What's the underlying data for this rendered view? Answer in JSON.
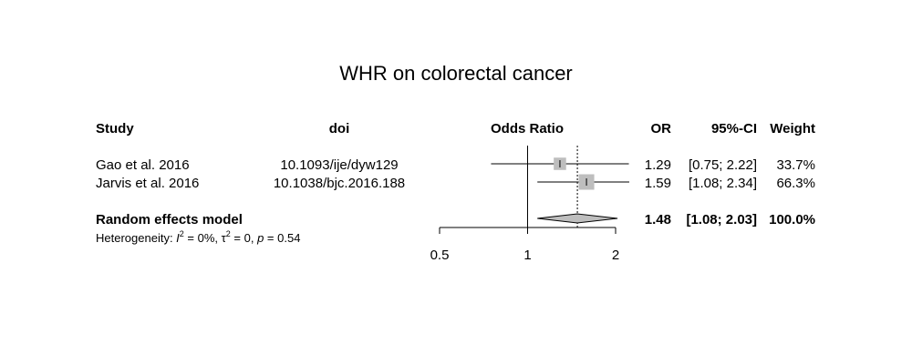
{
  "chart_data": {
    "type": "forest",
    "title": "WHR on colorectal cancer",
    "columns": {
      "study": "Study",
      "doi": "doi",
      "effect_label": "Odds Ratio",
      "or": "OR",
      "ci": "95%-CI",
      "weight": "Weight"
    },
    "studies": [
      {
        "study": "Gao et al. 2016",
        "doi": "10.1093/ije/dyw129",
        "or": 1.29,
        "lower": 0.75,
        "upper": 2.22,
        "weight": 33.7,
        "or_text": "1.29",
        "ci_text": "[0.75; 2.22]",
        "weight_text": "33.7%"
      },
      {
        "study": "Jarvis et al. 2016",
        "doi": "10.1038/bjc.2016.188",
        "or": 1.59,
        "lower": 1.08,
        "upper": 2.34,
        "weight": 66.3,
        "or_text": "1.59",
        "ci_text": "[1.08; 2.34]",
        "weight_text": "66.3%"
      }
    ],
    "pooled": {
      "label": "Random effects model",
      "or": 1.48,
      "lower": 1.08,
      "upper": 2.03,
      "or_text": "1.48",
      "ci_text": "[1.08; 2.03]",
      "weight_text": "100.0%"
    },
    "heterogeneity": {
      "prefix": "Heterogeneity: ",
      "i2_symbol": "I",
      "i2_value": " = 0%, ",
      "tau_symbol": "τ",
      "tau_value": " = 0, ",
      "p_symbol": "p",
      "p_value": " = 0.54"
    },
    "x_axis": {
      "scale": "log",
      "ticks": [
        0.5,
        1,
        2
      ],
      "tick_labels": [
        "0.5",
        "1",
        "2"
      ],
      "range": [
        0.5,
        2
      ],
      "reference_line": 1,
      "pooled_line": 1.48
    },
    "colors": {
      "square_fill": "#bebebe",
      "diamond_fill": "#bebebe",
      "line": "#000000"
    }
  }
}
